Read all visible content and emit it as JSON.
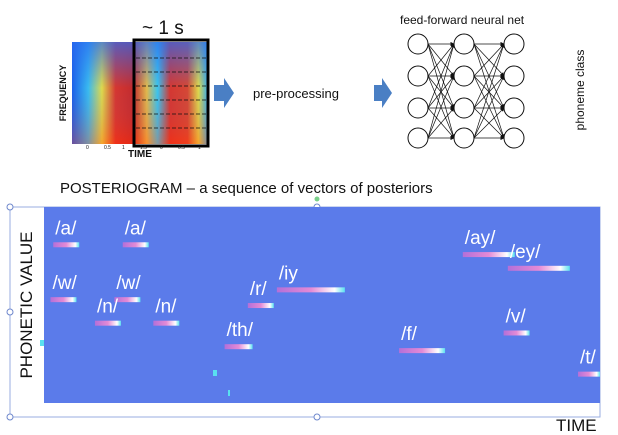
{
  "spectrogram": {
    "window_label": "~ 1 s",
    "y_axis_label": "FREQUENCY",
    "x_axis_label": "TIME",
    "tick_labels": [
      "0",
      "0.5",
      "1",
      "1.5",
      "0",
      "0.5",
      "1"
    ]
  },
  "pipeline": {
    "preprocessing_label": "pre-processing",
    "network_title": "feed-forward neural net",
    "output_label": "phoneme class"
  },
  "posteriogram": {
    "title": "POSTERIOGRAM – a sequence of vectors of posteriors",
    "y_axis_label": "PHONETIC VALUE",
    "x_axis_label": "TIME",
    "phonemes": [
      {
        "label": "/a/",
        "t": 0.04,
        "row": 0.18
      },
      {
        "label": "/a/",
        "t": 0.165,
        "row": 0.18
      },
      {
        "label": "/w/",
        "t": 0.035,
        "row": 0.46
      },
      {
        "label": "/w/",
        "t": 0.15,
        "row": 0.46
      },
      {
        "label": "/n/",
        "t": 0.115,
        "row": 0.58
      },
      {
        "label": "/n/",
        "t": 0.22,
        "row": 0.58
      },
      {
        "label": "/th/",
        "t": 0.35,
        "row": 0.7
      },
      {
        "label": "/r/",
        "t": 0.39,
        "row": 0.49
      },
      {
        "label": "/iy",
        "t": 0.48,
        "row": 0.41
      },
      {
        "label": "/f/",
        "t": 0.68,
        "row": 0.72
      },
      {
        "label": "/ay/",
        "t": 0.8,
        "row": 0.23
      },
      {
        "label": "/ey/",
        "t": 0.89,
        "row": 0.3
      },
      {
        "label": "/v/",
        "t": 0.85,
        "row": 0.63
      },
      {
        "label": "/t/",
        "t": 0.985,
        "row": 0.84
      }
    ]
  },
  "colors": {
    "posteriogram_bg": "#5b7bea",
    "accent_arrow": "#4a7fc4",
    "segment": "#d680d4",
    "segment_highlight": "#ffffff"
  }
}
